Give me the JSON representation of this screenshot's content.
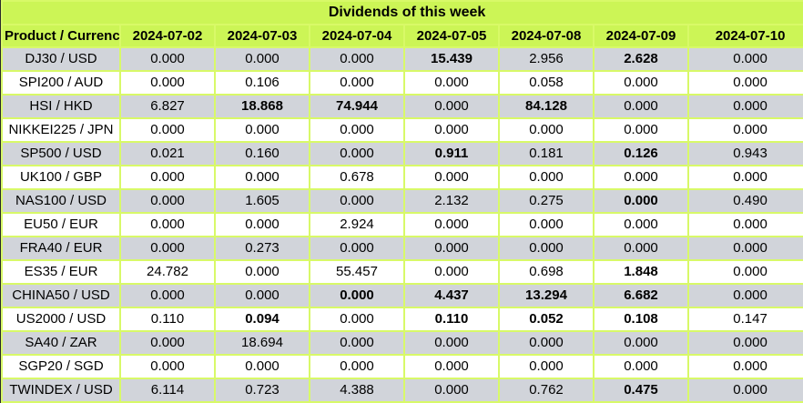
{
  "title": "Dividends of this week",
  "columns": {
    "product_header": "Product / Currency",
    "dates": [
      "2024-07-02",
      "2024-07-03",
      "2024-07-04",
      "2024-07-05",
      "2024-07-08",
      "2024-07-09",
      "2024-07-10"
    ]
  },
  "rows": [
    {
      "product": "DJ30 / USD",
      "values": [
        "0.000",
        "0.000",
        "0.000",
        "15.439",
        "2.956",
        "2.628",
        "0.000"
      ],
      "bold": [
        3,
        5
      ]
    },
    {
      "product": "SPI200 / AUD",
      "values": [
        "0.000",
        "0.106",
        "0.000",
        "0.000",
        "0.058",
        "0.000",
        "0.000"
      ],
      "bold": []
    },
    {
      "product": "HSI / HKD",
      "values": [
        "6.827",
        "18.868",
        "74.944",
        "0.000",
        "84.128",
        "0.000",
        "0.000"
      ],
      "bold": [
        1,
        2,
        4
      ]
    },
    {
      "product": "NIKKEI225 / JPN",
      "values": [
        "0.000",
        "0.000",
        "0.000",
        "0.000",
        "0.000",
        "0.000",
        "0.000"
      ],
      "bold": []
    },
    {
      "product": "SP500 / USD",
      "values": [
        "0.021",
        "0.160",
        "0.000",
        "0.911",
        "0.181",
        "0.126",
        "0.943"
      ],
      "bold": [
        3,
        5
      ]
    },
    {
      "product": "UK100 / GBP",
      "values": [
        "0.000",
        "0.000",
        "0.678",
        "0.000",
        "0.000",
        "0.000",
        "0.000"
      ],
      "bold": []
    },
    {
      "product": "NAS100 / USD",
      "values": [
        "0.000",
        "1.605",
        "0.000",
        "2.132",
        "0.275",
        "0.000",
        "0.490"
      ],
      "bold": [
        5
      ]
    },
    {
      "product": "EU50 / EUR",
      "values": [
        "0.000",
        "0.000",
        "2.924",
        "0.000",
        "0.000",
        "0.000",
        "0.000"
      ],
      "bold": []
    },
    {
      "product": "FRA40 / EUR",
      "values": [
        "0.000",
        "0.273",
        "0.000",
        "0.000",
        "0.000",
        "0.000",
        "0.000"
      ],
      "bold": []
    },
    {
      "product": "ES35 / EUR",
      "values": [
        "24.782",
        "0.000",
        "55.457",
        "0.000",
        "0.698",
        "1.848",
        "0.000"
      ],
      "bold": [
        5
      ]
    },
    {
      "product": "CHINA50 / USD",
      "values": [
        "0.000",
        "0.000",
        "0.000",
        "4.437",
        "13.294",
        "6.682",
        "0.000"
      ],
      "bold": [
        2,
        3,
        4,
        5
      ]
    },
    {
      "product": "US2000 / USD",
      "values": [
        "0.110",
        "0.094",
        "0.000",
        "0.110",
        "0.052",
        "0.108",
        "0.147"
      ],
      "bold": [
        1,
        3,
        4,
        5
      ]
    },
    {
      "product": "SA40 / ZAR",
      "values": [
        "0.000",
        "18.694",
        "0.000",
        "0.000",
        "0.000",
        "0.000",
        "0.000"
      ],
      "bold": []
    },
    {
      "product": "SGP20 / SGD",
      "values": [
        "0.000",
        "0.000",
        "0.000",
        "0.000",
        "0.000",
        "0.000",
        "0.000"
      ],
      "bold": []
    },
    {
      "product": "TWINDEX / USD",
      "values": [
        "6.114",
        "0.723",
        "4.388",
        "0.000",
        "0.762",
        "0.475",
        "0.000"
      ],
      "bold": [
        5
      ]
    }
  ],
  "colors": {
    "header_green": "#ccf556",
    "grid_green": "#d8f968",
    "row_gray": "#d1d4da",
    "row_white": "#ffffff",
    "text": "#000000",
    "left_border": "#2b2b2b"
  }
}
